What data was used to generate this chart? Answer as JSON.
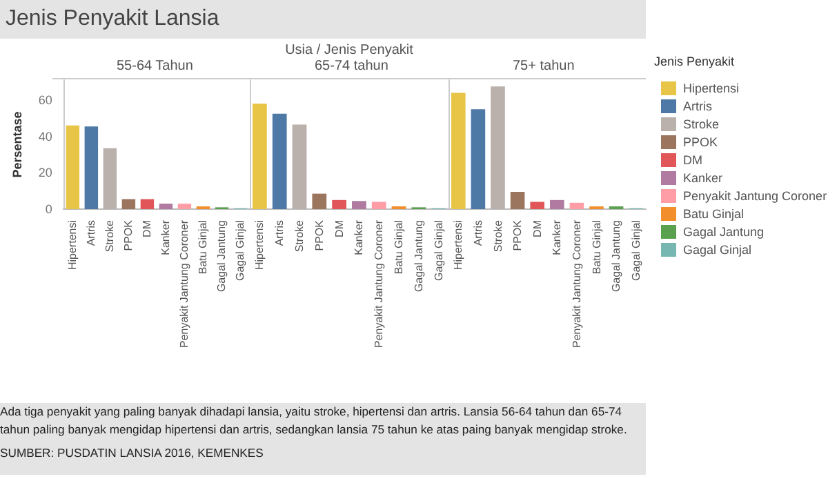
{
  "chart_data": [
    {
      "type": "other",
      "title": "Jenis Penyakit Lansia",
      "subtitle": "Usia / Jenis Penyakit",
      "annotations": [
        "Ada tiga penyakit yang paling banyak dihadapi lansia, yaitu stroke, hipertensi dan artris. Lansia 56-64 tahun dan 65-74 tahun paling banyak mengidap hipertensi dan artris, sedangkan lansia 75 tahun ke atas paing banyak mengidap stroke.",
        "SUMBER: PUSDATIN LANSIA 2016, KEMENKES"
      ]
    },
    {
      "type": "bar",
      "title": "55-64 Tahun",
      "ylabel": "Persentase",
      "categories": [
        "Hipertensi",
        "Artris",
        "Stroke",
        "PPOK",
        "DM",
        "Kanker",
        "Penyakit Jantung Coroner",
        "Batu Ginjal",
        "Gagal Jantung",
        "Gagal Ginjal"
      ],
      "series": [
        {
          "color": "#e8c547",
          "values": [
            46,
            null,
            null,
            null,
            null,
            null,
            null,
            null,
            null,
            null
          ]
        },
        {
          "color": "#4e79a7",
          "values": [
            null,
            45.5,
            null,
            null,
            null,
            null,
            null,
            null,
            null,
            null
          ]
        },
        {
          "color": "#bab0ac",
          "values": [
            null,
            null,
            33.5,
            null,
            null,
            null,
            null,
            null,
            null,
            null
          ]
        },
        {
          "color": "#9c755f",
          "values": [
            null,
            null,
            null,
            5.5,
            null,
            null,
            null,
            null,
            null,
            null
          ]
        },
        {
          "color": "#e15759",
          "values": [
            null,
            null,
            null,
            null,
            5.5,
            null,
            null,
            null,
            null,
            null
          ]
        },
        {
          "color": "#b07aa1",
          "values": [
            null,
            null,
            null,
            null,
            null,
            3,
            null,
            null,
            null,
            null
          ]
        },
        {
          "color": "#ff9da7",
          "values": [
            null,
            null,
            null,
            null,
            null,
            null,
            3,
            null,
            null,
            null
          ]
        },
        {
          "color": "#f28e2b",
          "values": [
            null,
            null,
            null,
            null,
            null,
            null,
            null,
            1.5,
            null,
            null
          ]
        },
        {
          "color": "#59a14f",
          "values": [
            null,
            null,
            null,
            null,
            null,
            null,
            null,
            null,
            1,
            null
          ]
        },
        {
          "color": "#76b7b2",
          "values": [
            null,
            null,
            null,
            null,
            null,
            null,
            null,
            null,
            null,
            0.5
          ]
        }
      ],
      "ylim": [
        0,
        71
      ],
      "yticks": [
        0,
        20,
        40,
        60
      ]
    },
    {
      "type": "bar",
      "title": "65-74 tahun",
      "categories": [
        "Hipertensi",
        "Artris",
        "Stroke",
        "PPOK",
        "DM",
        "Kanker",
        "Penyakit Jantung Coroner",
        "Batu Ginjal",
        "Gagal Jantung",
        "Gagal Ginjal"
      ],
      "series": [
        {
          "color": "#e8c547",
          "values": [
            58,
            null,
            null,
            null,
            null,
            null,
            null,
            null,
            null,
            null
          ]
        },
        {
          "color": "#4e79a7",
          "values": [
            null,
            52.5,
            null,
            null,
            null,
            null,
            null,
            null,
            null,
            null
          ]
        },
        {
          "color": "#bab0ac",
          "values": [
            null,
            null,
            46.5,
            null,
            null,
            null,
            null,
            null,
            null,
            null
          ]
        },
        {
          "color": "#9c755f",
          "values": [
            null,
            null,
            null,
            8.5,
            null,
            null,
            null,
            null,
            null,
            null
          ]
        },
        {
          "color": "#e15759",
          "values": [
            null,
            null,
            null,
            null,
            5,
            null,
            null,
            null,
            null,
            null
          ]
        },
        {
          "color": "#b07aa1",
          "values": [
            null,
            null,
            null,
            null,
            null,
            4.5,
            null,
            null,
            null,
            null
          ]
        },
        {
          "color": "#ff9da7",
          "values": [
            null,
            null,
            null,
            null,
            null,
            null,
            4,
            null,
            null,
            null
          ]
        },
        {
          "color": "#f28e2b",
          "values": [
            null,
            null,
            null,
            null,
            null,
            null,
            null,
            1.5,
            null,
            null
          ]
        },
        {
          "color": "#59a14f",
          "values": [
            null,
            null,
            null,
            null,
            null,
            null,
            null,
            null,
            1,
            null
          ]
        },
        {
          "color": "#76b7b2",
          "values": [
            null,
            null,
            null,
            null,
            null,
            null,
            null,
            null,
            null,
            0.5
          ]
        }
      ],
      "ylim": [
        0,
        71
      ],
      "yticks": [
        0,
        20,
        40,
        60
      ],
      "tick_labels": "x"
    },
    {
      "type": "bar",
      "title": "75+ tahun",
      "legend_title": "Jenis Penyakit",
      "legend": "right",
      "categories": [
        "Hipertensi",
        "Artris",
        "Stroke",
        "PPOK",
        "DM",
        "Kanker",
        "Penyakit Jantung Coroner",
        "Batu Ginjal",
        "Gagal Jantung",
        "Gagal Ginjal"
      ],
      "series": [
        {
          "name": "Hipertensi",
          "color": "#e8c547",
          "values": [
            64,
            null,
            null,
            null,
            null,
            null,
            null,
            null,
            null,
            null
          ]
        },
        {
          "name": "Artris",
          "color": "#4e79a7",
          "values": [
            null,
            55,
            null,
            null,
            null,
            null,
            null,
            null,
            null,
            null
          ]
        },
        {
          "name": "Stroke",
          "color": "#bab0ac",
          "values": [
            null,
            null,
            67.5,
            null,
            null,
            null,
            null,
            null,
            null,
            null
          ]
        },
        {
          "name": "PPOK",
          "color": "#9c755f",
          "values": [
            null,
            null,
            null,
            9.5,
            null,
            null,
            null,
            null,
            null,
            null
          ]
        },
        {
          "name": "DM",
          "color": "#e15759",
          "values": [
            null,
            null,
            null,
            null,
            4,
            null,
            null,
            null,
            null,
            null
          ]
        },
        {
          "name": "Kanker",
          "color": "#b07aa1",
          "values": [
            null,
            null,
            null,
            null,
            null,
            5,
            null,
            null,
            null,
            null
          ]
        },
        {
          "name": "Penyakit Jantung Coroner",
          "color": "#ff9da7",
          "values": [
            null,
            null,
            null,
            null,
            null,
            null,
            3.5,
            null,
            null,
            null
          ]
        },
        {
          "name": "Batu Ginjal",
          "color": "#f28e2b",
          "values": [
            null,
            null,
            null,
            null,
            null,
            null,
            null,
            1.5,
            null,
            null
          ]
        },
        {
          "name": "Gagal Jantung",
          "color": "#59a14f",
          "values": [
            null,
            null,
            null,
            null,
            null,
            null,
            null,
            null,
            1.5,
            null
          ]
        },
        {
          "name": "Gagal Ginjal",
          "color": "#76b7b2",
          "values": [
            null,
            null,
            null,
            null,
            null,
            null,
            null,
            null,
            null,
            0.5
          ]
        }
      ],
      "ylim": [
        0,
        71
      ],
      "yticks": [
        0,
        20,
        40,
        60
      ],
      "tick_labels": "x"
    }
  ]
}
